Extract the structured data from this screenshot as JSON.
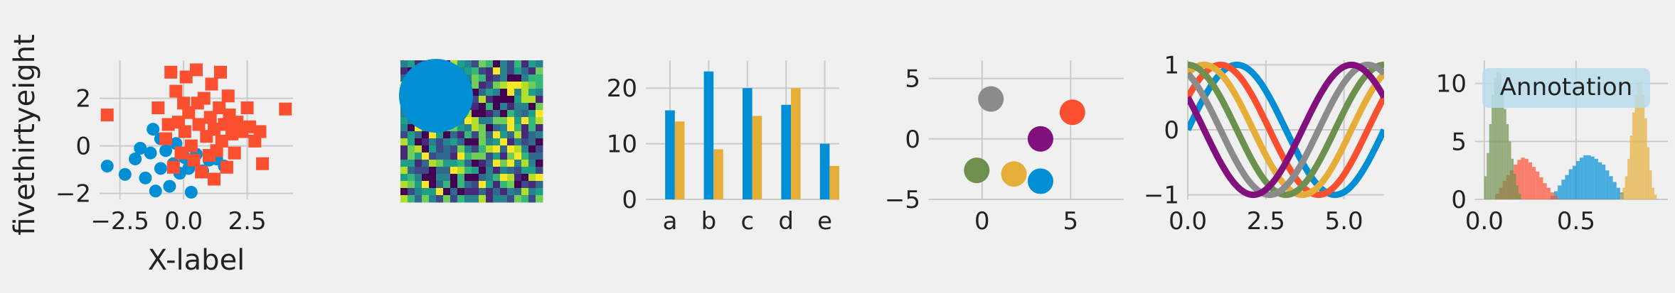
{
  "figure": {
    "style": "fivethirtyeight",
    "background": "#f0f0f0",
    "grid_color": "#cbcbcb",
    "palette": [
      "#008fd5",
      "#fc4f30",
      "#e5ae38",
      "#6d904f",
      "#8b8b8b",
      "#810f7c"
    ]
  },
  "chart_data": [
    {
      "type": "scatter",
      "title": "",
      "xlabel": "X-label",
      "ylabel": "fivethirtyeight",
      "xlim": [
        -3.3,
        4.3
      ],
      "ylim": [
        -2.25,
        3.6
      ],
      "xticks": [
        -2.5,
        0.0,
        2.5
      ],
      "xtick_labels": [
        "−2.5",
        "0.0",
        "2.5"
      ],
      "yticks": [
        -2,
        0,
        2
      ],
      "ytick_labels": [
        "−2",
        "0",
        "2"
      ],
      "grid": true,
      "series": [
        {
          "marker": "circle",
          "color": "#008fd5",
          "points": [
            [
              -3.0,
              -0.85
            ],
            [
              -2.3,
              -1.2
            ],
            [
              -1.9,
              -0.55
            ],
            [
              -1.5,
              -1.35
            ],
            [
              -1.3,
              -0.3
            ],
            [
              -1.1,
              -1.9
            ],
            [
              -0.9,
              -0.95
            ],
            [
              -0.7,
              -0.2
            ],
            [
              -0.55,
              -1.7
            ],
            [
              -0.4,
              -0.75
            ],
            [
              -0.3,
              0.1
            ],
            [
              -0.15,
              -1.15
            ],
            [
              0.05,
              -0.5
            ],
            [
              0.2,
              -0.95
            ],
            [
              0.3,
              -1.95
            ],
            [
              0.5,
              -0.35
            ],
            [
              0.75,
              -1.05
            ],
            [
              1.0,
              -0.6
            ],
            [
              1.3,
              -0.55
            ],
            [
              1.6,
              -0.85
            ],
            [
              -1.7,
              -0.1
            ],
            [
              -0.9,
              0.3
            ],
            [
              -1.2,
              0.7
            ]
          ]
        },
        {
          "marker": "square",
          "color": "#fc4f30",
          "points": [
            [
              -3.0,
              1.3
            ],
            [
              -1.0,
              1.6
            ],
            [
              -0.7,
              0.3
            ],
            [
              -0.5,
              3.1
            ],
            [
              -0.3,
              2.3
            ],
            [
              -0.2,
              1.0
            ],
            [
              -0.1,
              -0.3
            ],
            [
              0.05,
              0.6
            ],
            [
              0.1,
              2.9
            ],
            [
              0.2,
              1.4
            ],
            [
              0.3,
              0.0
            ],
            [
              0.4,
              -0.6
            ],
            [
              0.5,
              3.2
            ],
            [
              0.55,
              1.8
            ],
            [
              0.6,
              0.9
            ],
            [
              0.7,
              -1.1
            ],
            [
              0.8,
              2.0
            ],
            [
              0.9,
              0.4
            ],
            [
              1.0,
              -0.4
            ],
            [
              1.05,
              1.2
            ],
            [
              1.1,
              2.6
            ],
            [
              1.2,
              0.7
            ],
            [
              1.3,
              -0.2
            ],
            [
              1.4,
              1.6
            ],
            [
              1.45,
              3.1
            ],
            [
              1.5,
              0.2
            ],
            [
              1.6,
              0.9
            ],
            [
              1.7,
              -0.9
            ],
            [
              1.75,
              2.1
            ],
            [
              1.8,
              1.3
            ],
            [
              1.9,
              0.5
            ],
            [
              2.0,
              -0.3
            ],
            [
              2.1,
              1.0
            ],
            [
              2.3,
              0.6
            ],
            [
              2.5,
              1.6
            ],
            [
              2.6,
              0.8
            ],
            [
              2.8,
              0.2
            ],
            [
              3.0,
              0.6
            ],
            [
              3.1,
              -0.75
            ],
            [
              4.0,
              1.55
            ],
            [
              -0.6,
              0.9
            ],
            [
              0.0,
              1.8
            ],
            [
              1.2,
              -1.4
            ],
            [
              -0.4,
              -0.9
            ]
          ]
        }
      ]
    },
    {
      "type": "heatmap",
      "title": "",
      "shape": [
        20,
        20
      ],
      "colormap": "viridis",
      "seed": 7,
      "overlay": {
        "shape": "circle",
        "color": "#008fd5",
        "center_cell": [
          5,
          5
        ],
        "radius_cells": 5.2
      },
      "grid": false
    },
    {
      "type": "bar",
      "title": "",
      "categories": [
        "a",
        "b",
        "c",
        "d",
        "e"
      ],
      "series": [
        {
          "color": "#008fd5",
          "values": [
            16,
            23,
            20,
            17,
            10
          ]
        },
        {
          "color": "#e5ae38",
          "values": [
            14,
            9,
            15,
            20,
            6
          ]
        }
      ],
      "ylim": [
        0,
        25
      ],
      "yticks": [
        0,
        10,
        20
      ],
      "ytick_labels": [
        "0",
        "10",
        "20"
      ],
      "grid": true
    },
    {
      "type": "scatter",
      "title": "",
      "xlim": [
        -3,
        8
      ],
      "ylim": [
        -5,
        6.5
      ],
      "xticks": [
        0,
        5
      ],
      "xtick_labels": [
        "0",
        "5"
      ],
      "yticks": [
        -5,
        0,
        5
      ],
      "ytick_labels": [
        "−5",
        "0",
        "5"
      ],
      "grid": true,
      "points": [
        {
          "x": 0.5,
          "y": 3.3,
          "color": "#8b8b8b"
        },
        {
          "x": 5.1,
          "y": 2.2,
          "color": "#fc4f30"
        },
        {
          "x": 3.3,
          "y": 0.0,
          "color": "#810f7c"
        },
        {
          "x": -0.3,
          "y": -2.6,
          "color": "#6d904f"
        },
        {
          "x": 1.8,
          "y": -2.9,
          "color": "#e5ae38"
        },
        {
          "x": 3.3,
          "y": -3.5,
          "color": "#008fd5"
        }
      ]
    },
    {
      "type": "line",
      "title": "",
      "x_range": [
        0,
        6.2832
      ],
      "xlim": [
        0,
        6.2832
      ],
      "ylim": [
        -1.07,
        1.07
      ],
      "xticks": [
        0.0,
        2.5,
        5.0
      ],
      "xtick_labels": [
        "0.0",
        "2.5",
        "5.0"
      ],
      "yticks": [
        -1,
        0,
        1
      ],
      "ytick_labels": [
        "−1",
        "0",
        "1"
      ],
      "grid": true,
      "series": [
        {
          "function": "sin",
          "phase": 0.0,
          "color": "#008fd5"
        },
        {
          "function": "sin",
          "phase": 0.5236,
          "color": "#fc4f30"
        },
        {
          "function": "sin",
          "phase": 1.0472,
          "color": "#e5ae38"
        },
        {
          "function": "sin",
          "phase": 1.5708,
          "color": "#6d904f"
        },
        {
          "function": "sin",
          "phase": 2.0944,
          "color": "#8b8b8b"
        },
        {
          "function": "sin",
          "phase": 2.618,
          "color": "#810f7c"
        }
      ]
    },
    {
      "type": "histogram",
      "title": "",
      "xlim": [
        -0.05,
        1.0
      ],
      "ylim": [
        0,
        12
      ],
      "xticks": [
        0.0,
        0.5
      ],
      "xtick_labels": [
        "0.0",
        "0.5"
      ],
      "yticks": [
        0,
        5,
        10
      ],
      "ytick_labels": [
        "0",
        "5",
        "10"
      ],
      "grid": true,
      "annotation": "Annotation",
      "series": [
        {
          "color": "#008fd5",
          "bin_start": 0.36,
          "bin_width": 0.02,
          "counts": [
            0.3,
            0.7,
            1.2,
            1.7,
            2.1,
            2.6,
            2.9,
            3.3,
            3.6,
            3.8,
            3.8,
            3.7,
            3.5,
            3.2,
            3.0,
            2.5,
            2.0,
            1.5,
            1.0,
            0.6
          ]
        },
        {
          "color": "#fc4f30",
          "bin_start": 0.06,
          "bin_width": 0.02,
          "counts": [
            0.5,
            1.0,
            1.6,
            2.1,
            2.5,
            3.0,
            3.4,
            3.6,
            3.5,
            3.2,
            2.8,
            2.4,
            1.9,
            1.4,
            1.0,
            0.6,
            0.3
          ]
        },
        {
          "color": "#e5ae38",
          "bin_start": 0.74,
          "bin_width": 0.0133,
          "counts": [
            0.5,
            1.0,
            2.0,
            3.5,
            5.5,
            7.5,
            9.0,
            10.0,
            10.2,
            9.0,
            7.0,
            4.5,
            2.5,
            1.0,
            0.4
          ]
        },
        {
          "color": "#6d904f",
          "bin_start": 0.0,
          "bin_width": 0.0133,
          "counts": [
            2.0,
            4.0,
            6.5,
            9.0,
            10.5,
            11.0,
            10.8,
            9.5,
            7.8,
            6.5,
            5.0,
            3.5,
            2.2,
            1.2,
            0.5
          ]
        }
      ]
    }
  ]
}
